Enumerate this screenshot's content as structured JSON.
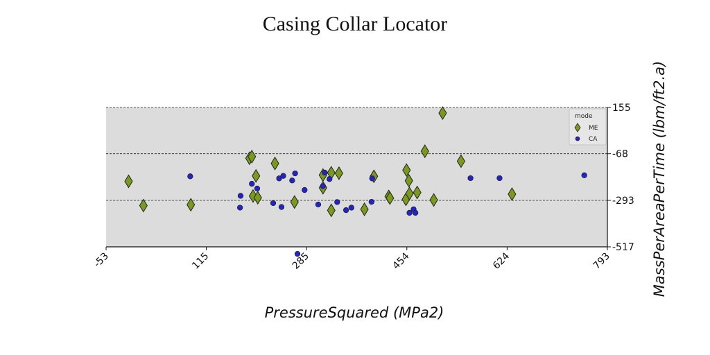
{
  "chart_data": {
    "type": "scatter",
    "title": "Casing Collar Locator",
    "xlabel": "PressureSquared (MPa2)",
    "ylabel": "MassPerAreaPerTime (lbm/ft2.a)",
    "xlim": [
      -53,
      793
    ],
    "ylim": [
      -517,
      155
    ],
    "x_ticks": [
      "-53",
      "115",
      "285",
      "454",
      "624",
      "793"
    ],
    "y_ticks": [
      "155",
      "-68",
      "-293",
      "-517"
    ],
    "y_tick_values": [
      155,
      -68,
      -293,
      -517
    ],
    "y_axis_position": "right",
    "grid": "horizontal dashed",
    "background": "#dcdcdc",
    "legend": {
      "title": "mode",
      "placement": "top-right"
    },
    "series": [
      {
        "name": "ME",
        "marker": "diamond",
        "color": "#7a9a1e",
        "points": [
          [
            -15,
            -201
          ],
          [
            10,
            -318
          ],
          [
            90,
            -314
          ],
          [
            189,
            -90
          ],
          [
            193,
            -82
          ],
          [
            200,
            -175
          ],
          [
            195,
            -272
          ],
          [
            203,
            -280
          ],
          [
            232,
            -115
          ],
          [
            265,
            -301
          ],
          [
            313,
            -171
          ],
          [
            313,
            -232
          ],
          [
            327,
            -160
          ],
          [
            327,
            -341
          ],
          [
            340,
            -162
          ],
          [
            383,
            -336
          ],
          [
            399,
            -177
          ],
          [
            424,
            -274
          ],
          [
            426,
            -282
          ],
          [
            453,
            -288
          ],
          [
            454,
            -147
          ],
          [
            458,
            -198
          ],
          [
            459,
            -260
          ],
          [
            472,
            -255
          ],
          [
            485,
            -56
          ],
          [
            500,
            -291
          ],
          [
            515,
            128
          ],
          [
            546,
            -104
          ],
          [
            632,
            -263
          ]
        ]
      },
      {
        "name": "CA",
        "marker": "circle",
        "color": "#2323c8",
        "points": [
          [
            89,
            -177
          ],
          [
            173,
            -328
          ],
          [
            174,
            -271
          ],
          [
            193,
            -213
          ],
          [
            202,
            -236
          ],
          [
            229,
            -306
          ],
          [
            239,
            -187
          ],
          [
            243,
            -325
          ],
          [
            246,
            -175
          ],
          [
            261,
            -197
          ],
          [
            266,
            -163
          ],
          [
            270,
            -551
          ],
          [
            282,
            -243
          ],
          [
            305,
            -313
          ],
          [
            313,
            -224
          ],
          [
            316,
            -159
          ],
          [
            324,
            -190
          ],
          [
            337,
            -301
          ],
          [
            352,
            -340
          ],
          [
            361,
            -328
          ],
          [
            395,
            -300
          ],
          [
            396,
            -187
          ],
          [
            459,
            -353
          ],
          [
            466,
            -336
          ],
          [
            469,
            -353
          ],
          [
            562,
            -186
          ],
          [
            611,
            -186
          ],
          [
            754,
            -172
          ]
        ]
      }
    ]
  }
}
